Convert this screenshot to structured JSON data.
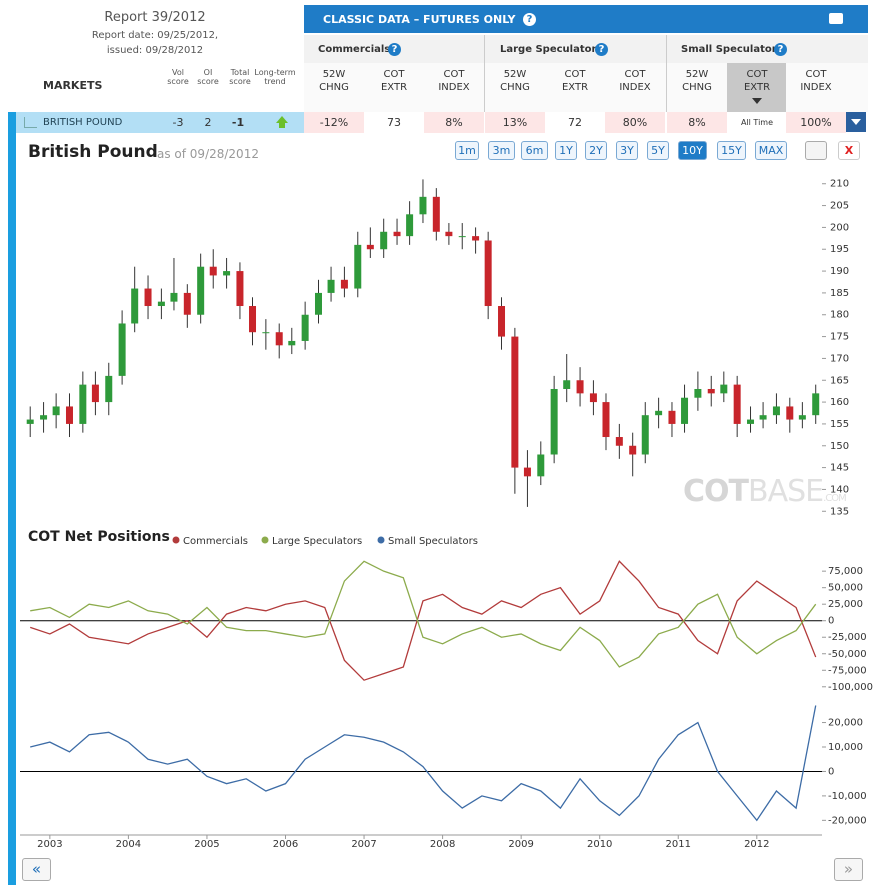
{
  "report": {
    "title": "Report 39/2012",
    "date": "Report date: 09/25/2012,",
    "issued": "issued: 09/28/2012"
  },
  "panel": {
    "title": "CLASSIC DATA – FUTURES ONLY",
    "help": "?"
  },
  "table": {
    "markets_header": "MARKETS",
    "score_headers": [
      "Vol score",
      "OI score",
      "Total score",
      "Long-term trend"
    ],
    "groups": [
      "Commercials",
      "Large Speculators",
      "Small Speculators"
    ],
    "columns": [
      "52W CHNG",
      "COT EXTR",
      "COT INDEX",
      "52W CHNG",
      "COT EXTR",
      "COT INDEX",
      "52W CHNG",
      "COT EXTR",
      "COT INDEX"
    ],
    "row": {
      "market": "BRITISH POUND",
      "scores": [
        -3,
        2,
        -1
      ],
      "cells": [
        "-12%",
        73,
        "8%",
        "13%",
        72,
        "80%",
        "8%",
        "All Time",
        "100%"
      ]
    }
  },
  "toolbar": {
    "ranges": [
      "1m",
      "3m",
      "6m",
      "1Y",
      "2Y",
      "3Y",
      "5Y",
      "10Y",
      "15Y",
      "MAX"
    ],
    "active": 7,
    "close": "X"
  },
  "watermark": [
    "COT",
    "BASE",
    ".COM"
  ],
  "nav": [
    "«",
    "»"
  ],
  "chart_data": [
    {
      "type": "candlestick",
      "title": "British Pound",
      "subtitle": "as of 09/28/2012",
      "up_color": "#2e9a3a",
      "down_color": "#c8252b",
      "x": [
        2002.75,
        2002.92,
        2003.08,
        2003.25,
        2003.42,
        2003.58,
        2003.75,
        2003.92,
        2004.08,
        2004.25,
        2004.42,
        2004.58,
        2004.75,
        2004.92,
        2005.08,
        2005.25,
        2005.42,
        2005.58,
        2005.75,
        2005.92,
        2006.08,
        2006.25,
        2006.42,
        2006.58,
        2006.75,
        2006.92,
        2007.08,
        2007.25,
        2007.42,
        2007.58,
        2007.75,
        2007.92,
        2008.08,
        2008.25,
        2008.42,
        2008.58,
        2008.75,
        2008.92,
        2009.08,
        2009.25,
        2009.42,
        2009.58,
        2009.75,
        2009.92,
        2010.08,
        2010.25,
        2010.42,
        2010.58,
        2010.75,
        2010.92,
        2011.08,
        2011.25,
        2011.42,
        2011.58,
        2011.75,
        2011.92,
        2012.08,
        2012.25,
        2012.42,
        2012.58,
        2012.75
      ],
      "open": [
        155,
        156,
        157,
        159,
        155,
        164,
        160,
        166,
        178,
        186,
        182,
        183,
        185,
        180,
        191,
        189,
        190,
        182,
        176,
        176,
        173,
        174,
        180,
        185,
        188,
        186,
        196,
        195,
        199,
        198,
        203,
        207,
        199,
        198,
        198,
        197,
        182,
        175,
        145,
        143,
        148,
        163,
        165,
        162,
        160,
        152,
        150,
        148,
        157,
        158,
        155,
        161,
        163,
        162,
        164,
        155,
        156,
        157,
        159,
        156,
        157
      ],
      "high": [
        159,
        160,
        162,
        162,
        167,
        167,
        169,
        181,
        191,
        189,
        186,
        193,
        187,
        194,
        195,
        193,
        192,
        184,
        179,
        178,
        177,
        183,
        188,
        191,
        191,
        199,
        200,
        202,
        202,
        206,
        211,
        209,
        201,
        201,
        200,
        199,
        184,
        177,
        149,
        151,
        166,
        171,
        168,
        165,
        162,
        155,
        153,
        160,
        161,
        160,
        164,
        167,
        166,
        167,
        166,
        159,
        160,
        162,
        161,
        160,
        164
      ],
      "low": [
        152,
        153,
        154,
        152,
        153,
        157,
        157,
        164,
        176,
        179,
        179,
        181,
        177,
        178,
        186,
        186,
        179,
        173,
        172,
        170,
        171,
        172,
        178,
        183,
        184,
        184,
        193,
        193,
        196,
        196,
        201,
        197,
        196,
        195,
        194,
        179,
        172,
        139,
        136,
        141,
        146,
        160,
        159,
        157,
        149,
        147,
        143,
        146,
        154,
        152,
        153,
        158,
        159,
        160,
        152,
        153,
        154,
        155,
        153,
        154,
        155
      ],
      "close": [
        156,
        157,
        159,
        155,
        164,
        160,
        166,
        178,
        186,
        182,
        183,
        185,
        180,
        191,
        189,
        190,
        182,
        176,
        176,
        173,
        174,
        180,
        185,
        188,
        186,
        196,
        195,
        199,
        198,
        203,
        207,
        199,
        198,
        198,
        197,
        182,
        175,
        145,
        143,
        148,
        163,
        165,
        162,
        160,
        152,
        150,
        148,
        157,
        158,
        155,
        161,
        163,
        162,
        164,
        155,
        156,
        157,
        159,
        156,
        157,
        162
      ],
      "xlim": [
        2002.62,
        2012.83
      ],
      "ylim": [
        133,
        212
      ],
      "yticks": [
        135,
        140,
        145,
        150,
        155,
        160,
        165,
        170,
        175,
        180,
        185,
        190,
        195,
        200,
        205,
        210
      ]
    },
    {
      "type": "line",
      "title": "COT Net Positions",
      "zero_line": true,
      "x": [
        2002.75,
        2003,
        2003.25,
        2003.5,
        2003.75,
        2004,
        2004.25,
        2004.5,
        2004.75,
        2005,
        2005.25,
        2005.5,
        2005.75,
        2006,
        2006.25,
        2006.5,
        2006.75,
        2007,
        2007.25,
        2007.5,
        2007.75,
        2008,
        2008.25,
        2008.5,
        2008.75,
        2009,
        2009.25,
        2009.5,
        2009.75,
        2010,
        2010.25,
        2010.5,
        2010.75,
        2011,
        2011.25,
        2011.5,
        2011.75,
        2012,
        2012.25,
        2012.5,
        2012.75
      ],
      "series": [
        {
          "name": "Commercials",
          "color": "#b23b3b",
          "values": [
            -10000,
            -20000,
            -5000,
            -25000,
            -30000,
            -35000,
            -20000,
            -10000,
            0,
            -25000,
            10000,
            20000,
            15000,
            25000,
            30000,
            20000,
            -60000,
            -90000,
            -80000,
            -70000,
            30000,
            40000,
            20000,
            10000,
            30000,
            20000,
            40000,
            50000,
            10000,
            30000,
            90000,
            60000,
            20000,
            10000,
            -30000,
            -50000,
            30000,
            60000,
            40000,
            20000,
            -55000
          ]
        },
        {
          "name": "Large Speculators",
          "color": "#8cab4c",
          "values": [
            15000,
            20000,
            5000,
            25000,
            20000,
            30000,
            15000,
            10000,
            -5000,
            20000,
            -10000,
            -15000,
            -15000,
            -20000,
            -25000,
            -20000,
            60000,
            90000,
            75000,
            65000,
            -25000,
            -35000,
            -20000,
            -10000,
            -25000,
            -20000,
            -35000,
            -45000,
            -10000,
            -30000,
            -70000,
            -55000,
            -20000,
            -10000,
            25000,
            40000,
            -25000,
            -50000,
            -30000,
            -15000,
            25000
          ]
        }
      ],
      "xlim": [
        2002.62,
        2012.83
      ],
      "ylim": [
        -120000,
        104000
      ],
      "yticks": [
        {
          "value": 75000,
          "label": "75,000"
        },
        {
          "value": 50000,
          "label": "50,000"
        },
        {
          "value": 25000,
          "label": "25,000"
        },
        0,
        {
          "value": -25000,
          "label": "-25,000"
        },
        {
          "value": -50000,
          "label": "-50,000"
        },
        {
          "value": -75000,
          "label": "-75,000"
        },
        {
          "value": -100000,
          "label": "-100,000"
        }
      ]
    },
    {
      "type": "line",
      "zero_line": true,
      "x": [
        2002.75,
        2003,
        2003.25,
        2003.5,
        2003.75,
        2004,
        2004.25,
        2004.5,
        2004.75,
        2005,
        2005.25,
        2005.5,
        2005.75,
        2006,
        2006.25,
        2006.5,
        2006.75,
        2007,
        2007.25,
        2007.5,
        2007.75,
        2008,
        2008.25,
        2008.5,
        2008.75,
        2009,
        2009.25,
        2009.5,
        2009.75,
        2010,
        2010.25,
        2010.5,
        2010.75,
        2011,
        2011.25,
        2011.5,
        2011.75,
        2012,
        2012.25,
        2012.5,
        2012.75
      ],
      "series": [
        {
          "name": "Small Speculators",
          "color": "#3d6ca6",
          "values": [
            10000,
            12000,
            8000,
            15000,
            16000,
            12000,
            5000,
            3000,
            5000,
            -2000,
            -5000,
            -3000,
            -8000,
            -5000,
            5000,
            10000,
            15000,
            14000,
            12000,
            8000,
            2000,
            -8000,
            -15000,
            -10000,
            -12000,
            -5000,
            -8000,
            -15000,
            -3000,
            -12000,
            -18000,
            -10000,
            5000,
            15000,
            20000,
            0,
            -10000,
            -20000,
            -8000,
            -15000,
            27000
          ]
        }
      ],
      "xlim": [
        2002.62,
        2012.83
      ],
      "ylim": [
        -26000,
        28000
      ],
      "xticks": [
        2003,
        2004,
        2005,
        2006,
        2007,
        2008,
        2009,
        2010,
        2011,
        2012
      ],
      "yticks": [
        {
          "value": 20000,
          "label": "20,000"
        },
        {
          "value": 10000,
          "label": "10,000"
        },
        0,
        {
          "value": -10000,
          "label": "-10,000"
        },
        {
          "value": -20000,
          "label": "-20,000"
        }
      ]
    }
  ]
}
